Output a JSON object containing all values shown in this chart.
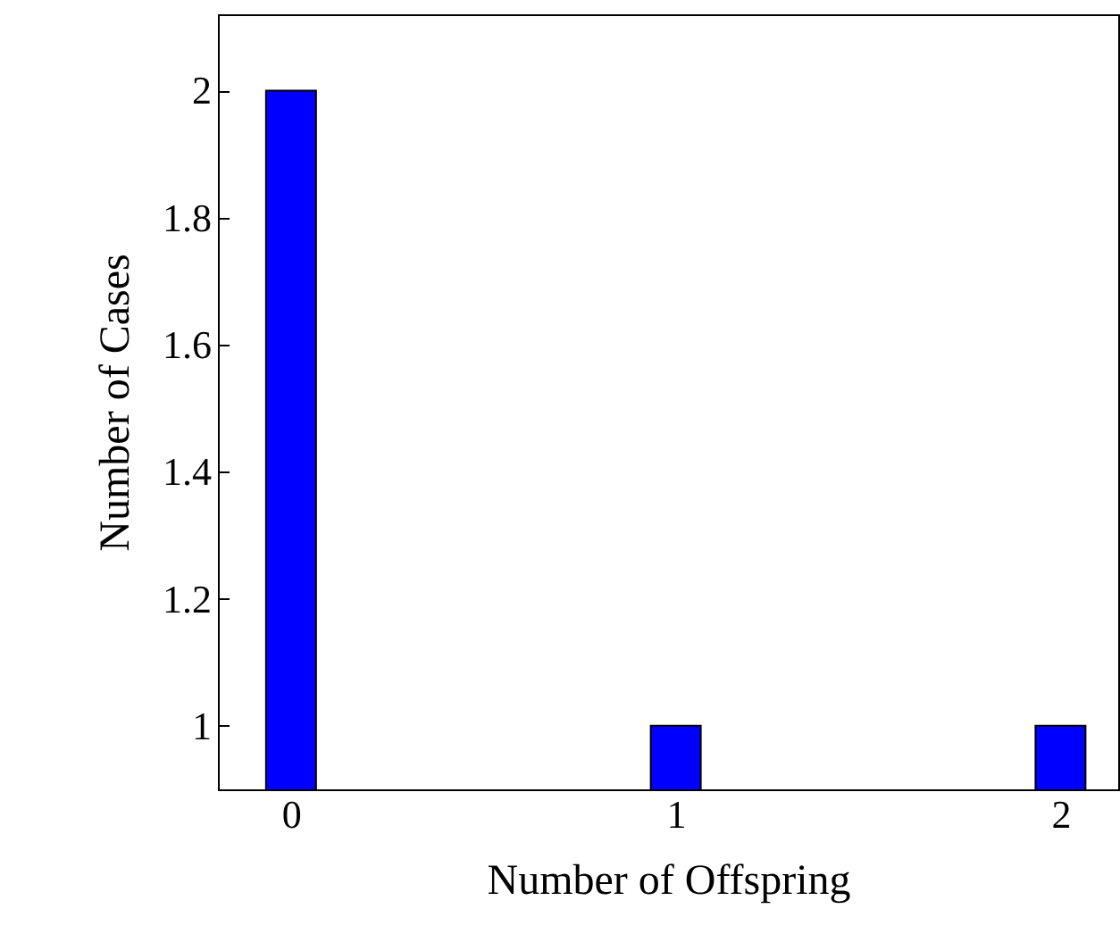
{
  "chart_data": {
    "type": "bar",
    "xlabel": "Number of Offspring",
    "ylabel": "Number of Cases",
    "x": [
      0,
      1,
      2
    ],
    "values": [
      2,
      1,
      1
    ],
    "color": "#0000ff",
    "xlim": [
      -0.19,
      2.15
    ],
    "xticks": [
      0,
      1,
      2
    ],
    "ylim": [
      0.9,
      2.12
    ],
    "yticks": [
      1,
      1.2,
      1.4,
      1.6,
      1.8,
      2
    ],
    "grid": false
  }
}
